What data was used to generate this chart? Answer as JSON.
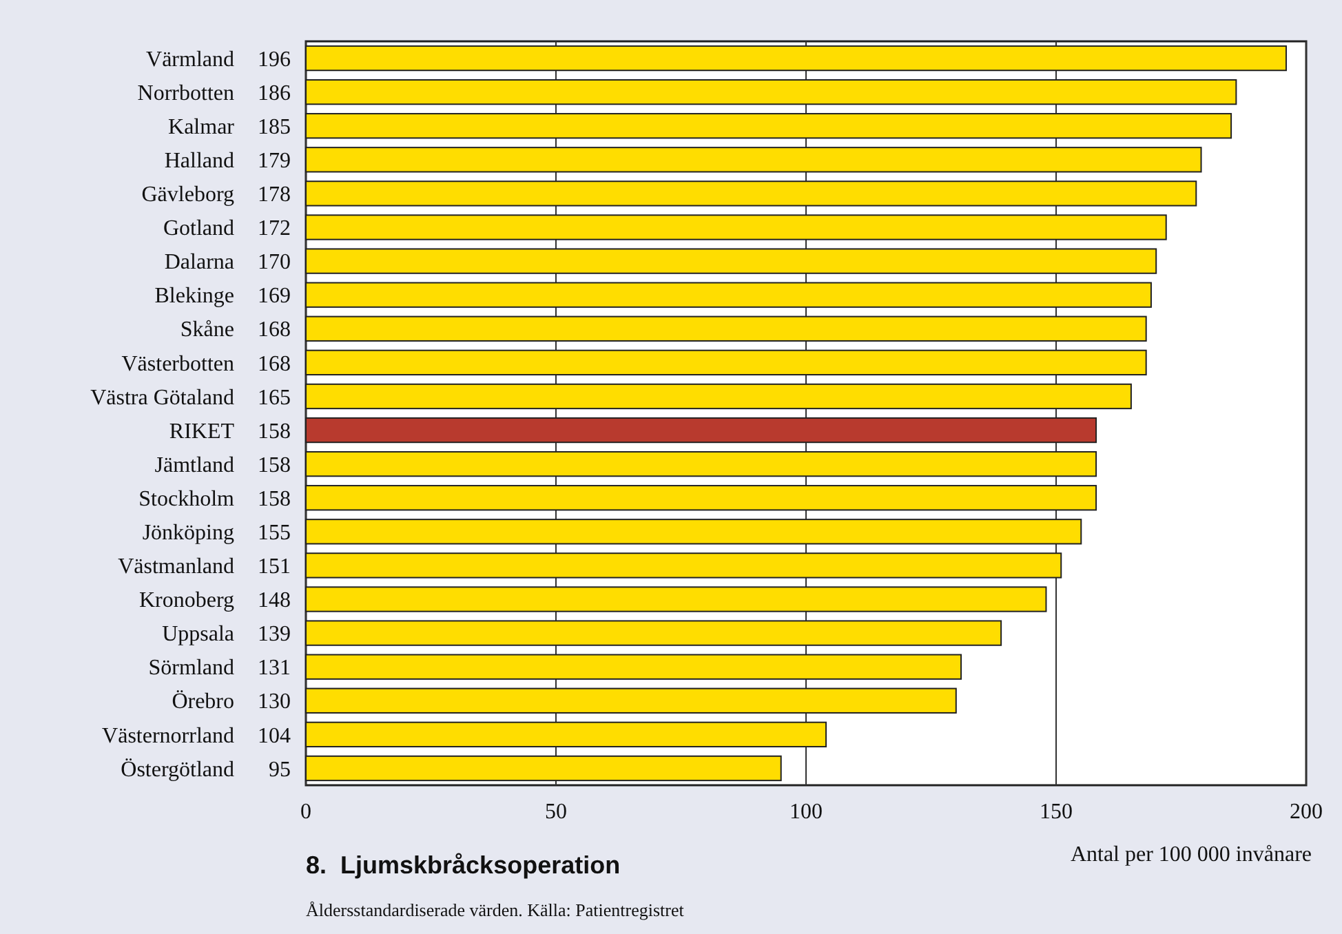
{
  "chart_data": {
    "type": "bar",
    "orientation": "horizontal",
    "title": "8.  Ljumskbråcksoperation",
    "xlabel": "Antal per 100 000 invånare",
    "annotations": [
      "Åldersstandardiserade värden. Källa: Patientregistret"
    ],
    "categories": [
      "Värmland",
      "Norrbotten",
      "Kalmar",
      "Halland",
      "Gävleborg",
      "Gotland",
      "Dalarna",
      "Blekinge",
      "Skåne",
      "Västerbotten",
      "Västra Götaland",
      "RIKET",
      "Jämtland",
      "Stockholm",
      "Jönköping",
      "Västmanland",
      "Kronoberg",
      "Uppsala",
      "Sörmland",
      "Örebro",
      "Västernorrland",
      "Östergötland"
    ],
    "values": [
      196,
      186,
      185,
      179,
      178,
      172,
      170,
      169,
      168,
      168,
      165,
      158,
      158,
      158,
      155,
      151,
      148,
      139,
      131,
      130,
      104,
      95
    ],
    "colors": [
      "#ffdd00",
      "#ffdd00",
      "#ffdd00",
      "#ffdd00",
      "#ffdd00",
      "#ffdd00",
      "#ffdd00",
      "#ffdd00",
      "#ffdd00",
      "#ffdd00",
      "#ffdd00",
      "#b83a2e",
      "#ffdd00",
      "#ffdd00",
      "#ffdd00",
      "#ffdd00",
      "#ffdd00",
      "#ffdd00",
      "#ffdd00",
      "#ffdd00",
      "#ffdd00",
      "#ffdd00"
    ],
    "data_labels": true,
    "xlim": [
      0,
      200
    ],
    "xticks": [
      0,
      50,
      100,
      150,
      200
    ],
    "grid": "x"
  }
}
